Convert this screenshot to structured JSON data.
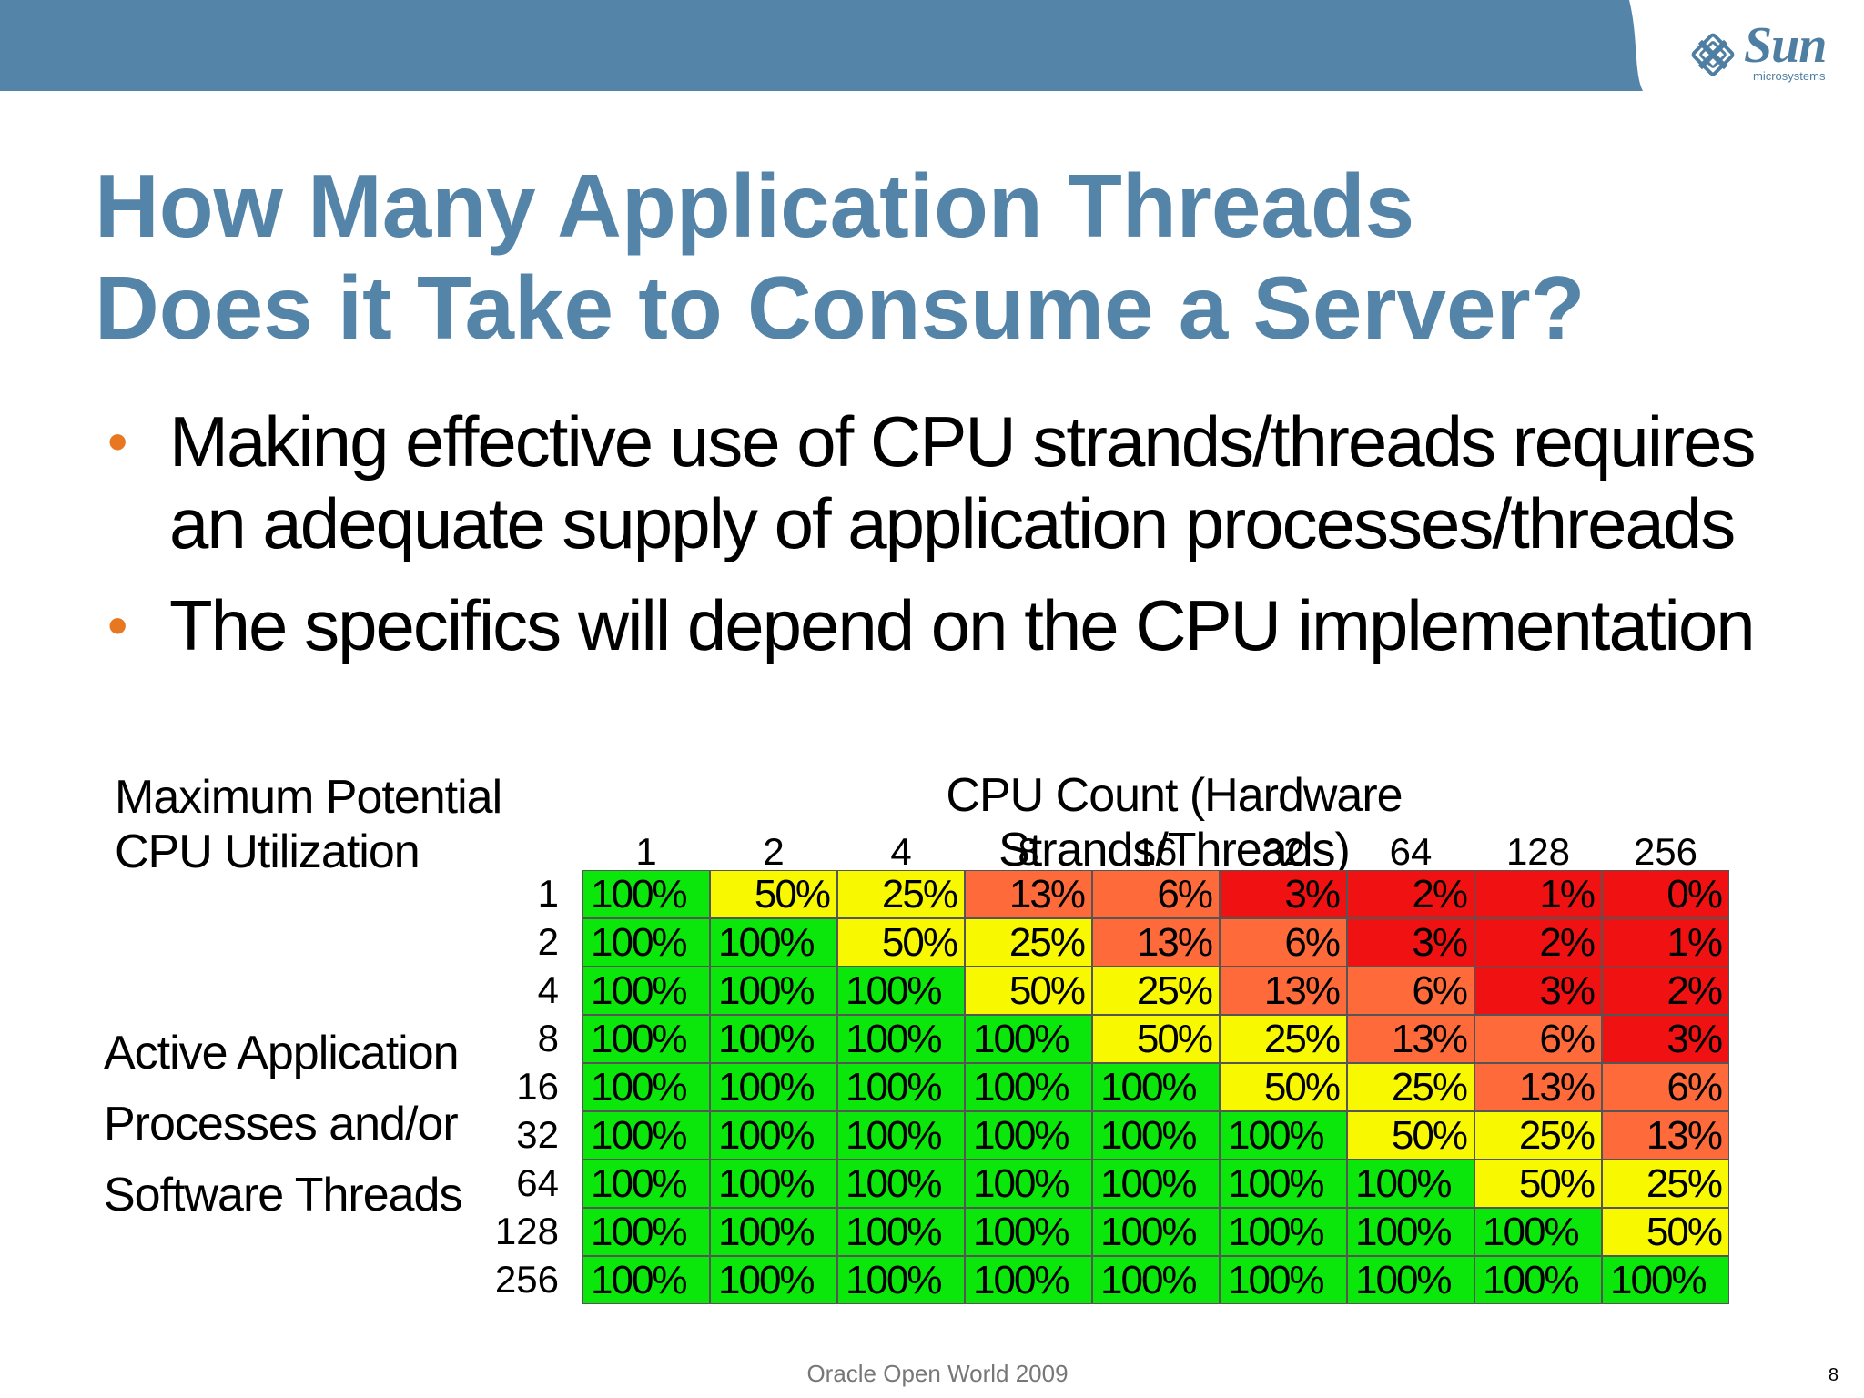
{
  "title": {
    "line1": "How Many Application Threads",
    "line2": "Does it Take to Consume a Server?"
  },
  "bullets": [
    {
      "line1": "Making effective use of CPU strands/threads requires",
      "line2": "an adequate supply of application processes/threads"
    },
    {
      "line1": "The specifics will depend on the CPU implementation",
      "line2": ""
    }
  ],
  "logo": {
    "word": "Sun",
    "sub": "microsystems"
  },
  "table": {
    "corner_label": {
      "line1": "Maximum Potential",
      "line2": "CPU Utilization"
    },
    "col_title": "CPU Count (Hardware Strands/Threads)",
    "row_label": {
      "line1": "Active Application",
      "line2": "Processes and/or",
      "line3": "Software Threads"
    },
    "columns": [
      "1",
      "2",
      "4",
      "8",
      "16",
      "32",
      "64",
      "128",
      "256"
    ],
    "rows": [
      "1",
      "2",
      "4",
      "8",
      "16",
      "32",
      "64",
      "128",
      "256"
    ],
    "cells": [
      [
        "100%",
        "50%",
        "25%",
        "13%",
        "6%",
        "3%",
        "2%",
        "1%",
        "0%"
      ],
      [
        "100%",
        "100%",
        "50%",
        "25%",
        "13%",
        "6%",
        "3%",
        "2%",
        "1%"
      ],
      [
        "100%",
        "100%",
        "100%",
        "50%",
        "25%",
        "13%",
        "6%",
        "3%",
        "2%"
      ],
      [
        "100%",
        "100%",
        "100%",
        "100%",
        "50%",
        "25%",
        "13%",
        "6%",
        "3%"
      ],
      [
        "100%",
        "100%",
        "100%",
        "100%",
        "100%",
        "50%",
        "25%",
        "13%",
        "6%"
      ],
      [
        "100%",
        "100%",
        "100%",
        "100%",
        "100%",
        "100%",
        "50%",
        "25%",
        "13%"
      ],
      [
        "100%",
        "100%",
        "100%",
        "100%",
        "100%",
        "100%",
        "100%",
        "50%",
        "25%"
      ],
      [
        "100%",
        "100%",
        "100%",
        "100%",
        "100%",
        "100%",
        "100%",
        "100%",
        "50%"
      ],
      [
        "100%",
        "100%",
        "100%",
        "100%",
        "100%",
        "100%",
        "100%",
        "100%",
        "100%"
      ]
    ],
    "colors": {
      "full": "#0be70b",
      "half": "#f8f800",
      "quarter": "#f8f800",
      "eighth": "#ff6a3a",
      "sixteenth": "#ff6a3a",
      "low": "#f01212"
    }
  },
  "footer": "Oracle Open World 2009",
  "page_number": "8",
  "colors": {
    "bar": "#5584a9",
    "title": "#5584a9",
    "bullet": "#e87722"
  }
}
